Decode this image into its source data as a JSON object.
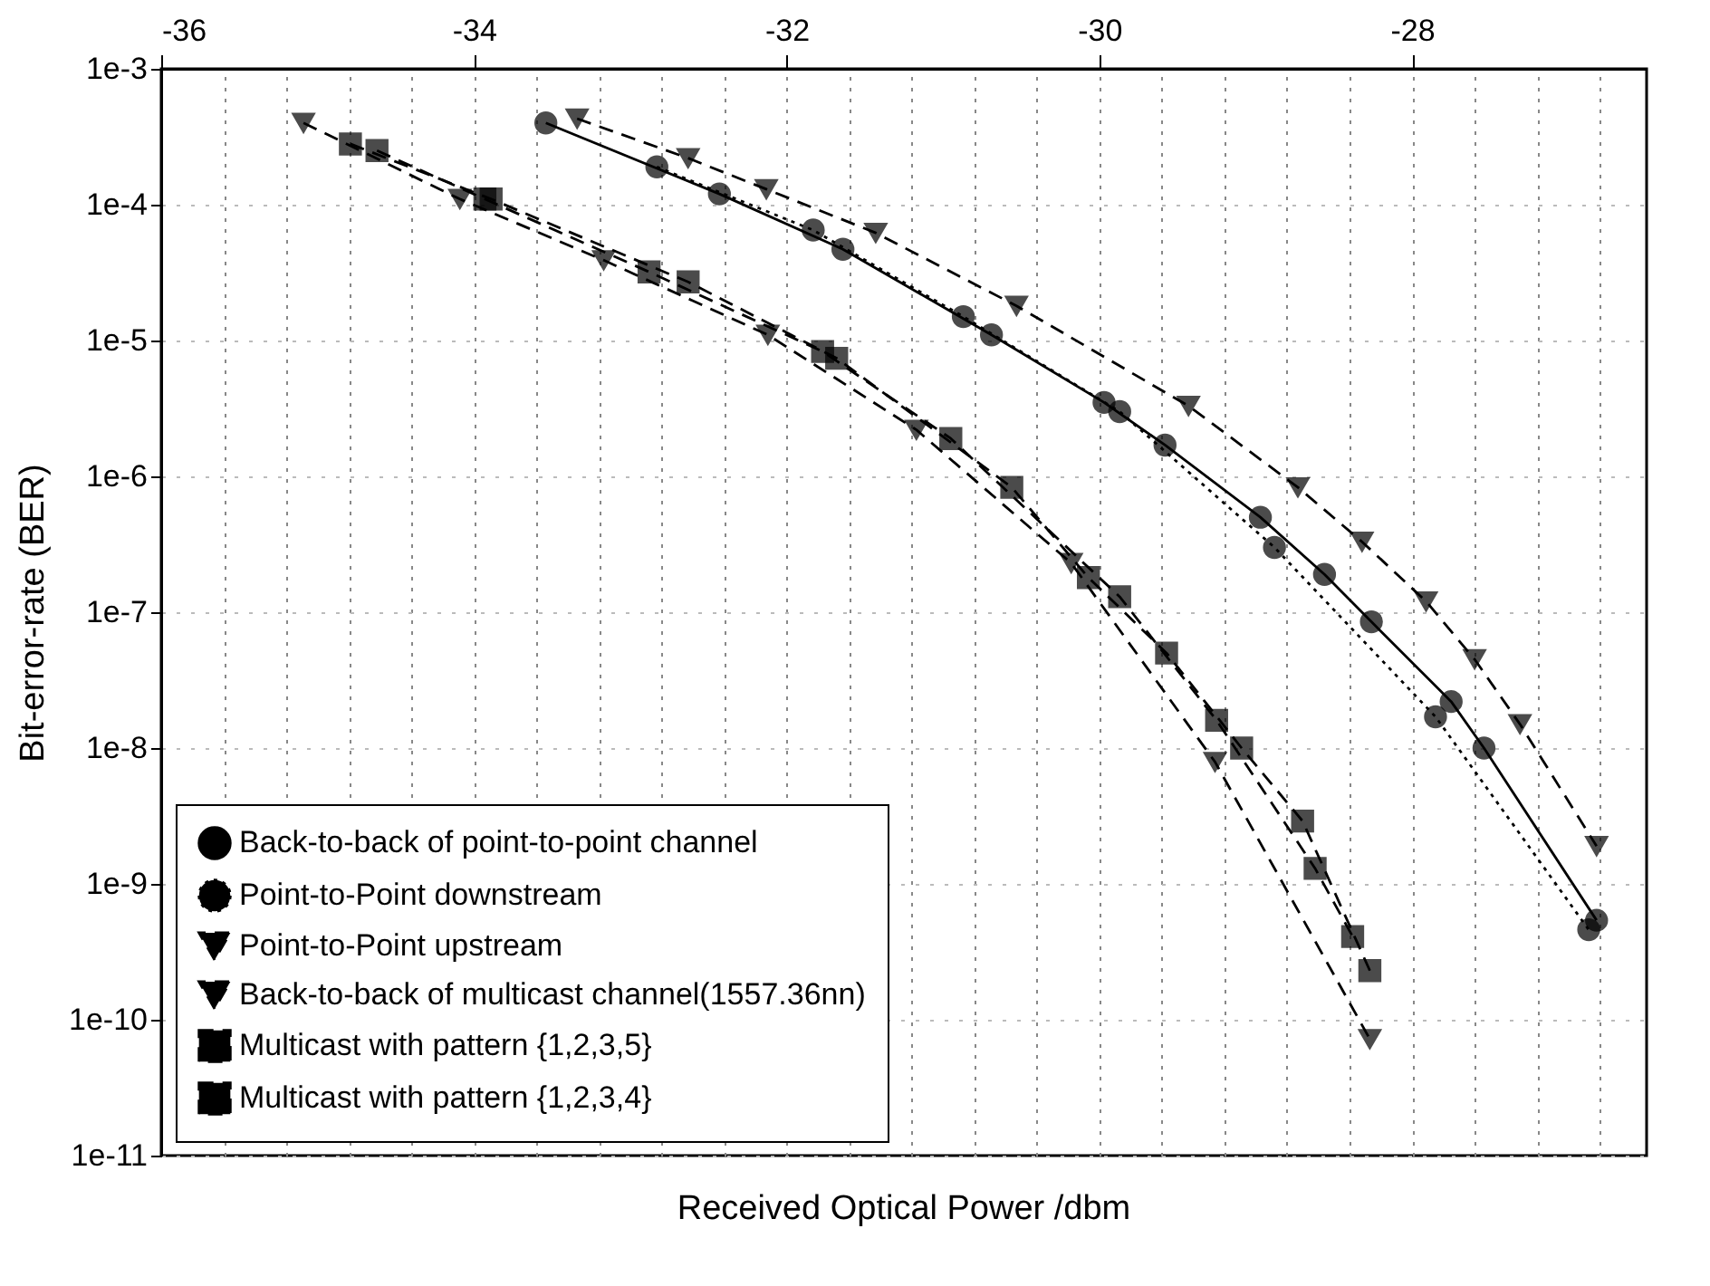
{
  "chart_data": {
    "type": "line",
    "xlabel": "Received Optical Power /dbm",
    "ylabel": "Bit-error-rate (BER)",
    "xlim": [
      -36,
      -26.5
    ],
    "ylim": [
      1e-11,
      0.001
    ],
    "log": "y",
    "grid": true,
    "legend": "bottom left",
    "xticks": [
      -36,
      {
        "value": -35.6,
        "label": null
      },
      {
        "value": -35.2,
        "label": null
      },
      {
        "value": -34.8,
        "label": null
      },
      {
        "value": -34.4,
        "label": null
      },
      -34,
      {
        "value": -33.6,
        "label": null
      },
      {
        "value": -33.2,
        "label": null
      },
      {
        "value": -32.8,
        "label": null
      },
      {
        "value": -32.4,
        "label": null
      },
      -32,
      {
        "value": -31.6,
        "label": null
      },
      {
        "value": -31.2,
        "label": null
      },
      {
        "value": -30.8,
        "label": null
      },
      {
        "value": -30.4,
        "label": null
      },
      -30,
      {
        "value": -29.6,
        "label": null
      },
      {
        "value": -29.2,
        "label": null
      },
      {
        "value": -28.8,
        "label": null
      },
      {
        "value": -28.4,
        "label": null
      },
      -28,
      {
        "value": -27.6,
        "label": null
      },
      {
        "value": -27.2,
        "label": null
      },
      {
        "value": -26.8,
        "label": null
      }
    ],
    "yticks": [
      {
        "value": 0.001,
        "label": "1e-3"
      },
      {
        "value": 0.0001,
        "label": "1e-4"
      },
      {
        "value": 1e-05,
        "label": "1e-5"
      },
      {
        "value": 1e-06,
        "label": "1e-6"
      },
      {
        "value": 1e-07,
        "label": "1e-7"
      },
      {
        "value": 1e-08,
        "label": "1e-8"
      },
      {
        "value": 1e-09,
        "label": "1e-9"
      },
      {
        "value": 1e-10,
        "label": "1e-10"
      },
      {
        "value": 1e-11,
        "label": "1e-11"
      }
    ],
    "series": [
      {
        "name": "Back-to-back of point-to-point channel",
        "color": "#000000",
        "marker": "circle",
        "line_style": "solid",
        "x": [
          -33.54,
          -32.43,
          -31.64,
          -30.69,
          -29.97,
          -29.58,
          -28.97,
          -28.56,
          -28.26,
          -27.75,
          -27.54,
          -26.82
        ],
        "values": [
          0.0004,
          0.00012,
          4.7e-05,
          1.1e-05,
          3.5e-06,
          1.7e-06,
          5e-07,
          1.9e-07,
          8.5e-08,
          2.2e-08,
          1e-08,
          5.4e-10
        ]
      },
      {
        "name": "Point-to-Point downstream",
        "color": "#000000",
        "marker": "circle",
        "line_style": "dotted",
        "x": [
          -32.83,
          -31.83,
          -30.87,
          -29.87,
          -28.88,
          -27.85,
          -26.87
        ],
        "values": [
          0.00019,
          6.5e-05,
          1.5e-05,
          3e-06,
          3e-07,
          1.7e-08,
          4.6e-10
        ]
      },
      {
        "name": "Point-to-Point upstream",
        "color": "#000000",
        "marker": "triangle",
        "line_style": "dashed",
        "x": [
          -33.34,
          -32.63,
          -32.13,
          -31.43,
          -30.53,
          -29.43,
          -28.73,
          -28.32,
          -27.91,
          -27.6,
          -27.31,
          -26.82
        ],
        "values": [
          0.00043,
          0.00022,
          0.00013,
          6.2e-05,
          1.8e-05,
          3.3e-06,
          8.3e-07,
          3.3e-07,
          1.2e-07,
          4.5e-08,
          1.5e-08,
          1.9e-09
        ]
      },
      {
        "name": "Back-to-back of multicast channel(1557.36nn)",
        "color": "#000000",
        "marker": "triangle",
        "line_style": "dashed",
        "x": [
          -35.09,
          -34.09,
          -33.17,
          -32.12,
          -31.17,
          -30.18,
          -29.26,
          -28.27
        ],
        "values": [
          0.0004,
          0.00011,
          3.9e-05,
          1.1e-05,
          2.2e-06,
          2.3e-07,
          7.9e-09,
          7.2e-11
        ]
      },
      {
        "name": "Multicast with pattern {1,2,3,5}",
        "color": "#000000",
        "marker": "square",
        "line_style": "dashed",
        "x": [
          -34.79,
          -33.89,
          -32.63,
          -31.68,
          -30.56,
          -30.07,
          -29.57,
          -29.09,
          -28.7,
          -28.27
        ],
        "values": [
          0.00028,
          0.00011,
          2.7e-05,
          7.4e-06,
          8.3e-07,
          1.8e-07,
          5e-08,
          1e-08,
          2.9e-09,
          2.3e-10
        ]
      },
      {
        "name": "Multicast with pattern {1,2,3,4}",
        "color": "#000000",
        "marker": "square",
        "line_style": "dashed",
        "x": [
          -34.62,
          -33.93,
          -32.88,
          -31.77,
          -30.95,
          -29.87,
          -29.25,
          -28.62,
          -28.38
        ],
        "values": [
          0.00025,
          0.00011,
          3.2e-05,
          8.3e-06,
          1.9e-06,
          1.3e-07,
          1.6e-08,
          1.3e-09,
          4.1e-10
        ]
      }
    ]
  }
}
